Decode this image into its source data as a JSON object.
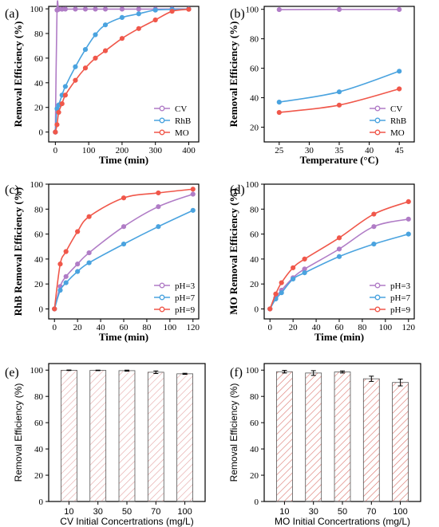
{
  "colors": {
    "cv": "#b07cc6",
    "rhb": "#4aa3df",
    "mo": "#f0574a",
    "bar_edge": "#555555",
    "hatch_e": "#e4a5a5",
    "hatch_f": "#d9726a"
  },
  "chart_data": [
    {
      "panel": "(a)",
      "type": "line",
      "xlabel": "Time (min)",
      "ylabel": "Removal Efficiency (%)",
      "xlim": [
        -20,
        430
      ],
      "ylim": [
        -8,
        102
      ],
      "xticks": [
        0,
        100,
        200,
        300,
        400
      ],
      "yticks": [
        0,
        20,
        40,
        60,
        80,
        100
      ],
      "legend": "bottom-right",
      "series": [
        {
          "name": "CV",
          "color_key": "cv",
          "x": [
            0,
            5,
            10,
            20,
            30,
            60,
            90,
            120,
            150,
            200,
            250,
            300,
            350,
            400
          ],
          "y": [
            0,
            99,
            99.6,
            99.7,
            99.8,
            99.8,
            99.8,
            99.8,
            99.8,
            99.8,
            99.8,
            99.8,
            99.9,
            99.9
          ]
        },
        {
          "name": "RhB",
          "color_key": "rhb",
          "x": [
            0,
            5,
            10,
            20,
            30,
            60,
            90,
            120,
            150,
            200,
            250,
            300,
            350,
            400
          ],
          "y": [
            0,
            19,
            22,
            30,
            37,
            53,
            67,
            79,
            87,
            93,
            96,
            99,
            99.5,
            99.8
          ]
        },
        {
          "name": "MO",
          "color_key": "mo",
          "x": [
            0,
            5,
            10,
            20,
            30,
            60,
            90,
            120,
            150,
            200,
            250,
            300,
            350,
            400
          ],
          "y": [
            0,
            6,
            16,
            23,
            30,
            42,
            52,
            60,
            66,
            76,
            84,
            91,
            98,
            99.6
          ]
        }
      ]
    },
    {
      "panel": "(b)",
      "type": "line",
      "xlabel": "Temperature (°C)",
      "ylabel": "Removal Efficiency (%)",
      "xlim": [
        22.5,
        47.5
      ],
      "ylim": [
        10,
        102
      ],
      "xticks": [
        25,
        30,
        35,
        40,
        45
      ],
      "yticks": [
        20,
        40,
        60,
        80,
        100
      ],
      "legend": "bottom-right",
      "series": [
        {
          "name": "CV",
          "color_key": "cv",
          "x": [
            25,
            35,
            45
          ],
          "y": [
            99.8,
            99.9,
            99.9
          ]
        },
        {
          "name": "RhB",
          "color_key": "rhb",
          "x": [
            25,
            35,
            45
          ],
          "y": [
            37,
            44,
            58
          ]
        },
        {
          "name": "MO",
          "color_key": "mo",
          "x": [
            25,
            35,
            45
          ],
          "y": [
            30,
            35,
            46
          ]
        }
      ]
    },
    {
      "panel": "(c)",
      "type": "line",
      "xlabel": "Time (min)",
      "ylabel": "RhB Removal Efficiency (%)",
      "xlim": [
        -5,
        125
      ],
      "ylim": [
        -8,
        100
      ],
      "xticks": [
        0,
        20,
        40,
        60,
        80,
        100,
        120
      ],
      "yticks": [
        0,
        20,
        40,
        60,
        80,
        100
      ],
      "legend": "bottom-right",
      "series": [
        {
          "name": "pH=3",
          "color_key": "cv",
          "x": [
            0,
            5,
            10,
            20,
            30,
            60,
            90,
            120
          ],
          "y": [
            0,
            18,
            26,
            36,
            45,
            66,
            82,
            92
          ]
        },
        {
          "name": "pH=7",
          "color_key": "rhb",
          "x": [
            0,
            5,
            10,
            20,
            30,
            60,
            90,
            120
          ],
          "y": [
            0,
            15,
            21,
            30,
            37,
            52,
            66,
            79
          ]
        },
        {
          "name": "pH=9",
          "color_key": "mo",
          "x": [
            0,
            5,
            10,
            20,
            30,
            60,
            90,
            120
          ],
          "y": [
            0,
            36,
            46,
            62,
            74,
            89,
            93,
            96
          ]
        }
      ]
    },
    {
      "panel": "(d)",
      "type": "line",
      "xlabel": "Time (min)",
      "ylabel": "MO Removal Efficiency (%)",
      "xlim": [
        -5,
        125
      ],
      "ylim": [
        -8,
        100
      ],
      "xticks": [
        0,
        20,
        40,
        60,
        80,
        100,
        120
      ],
      "yticks": [
        0,
        20,
        40,
        60,
        80,
        100
      ],
      "legend": "bottom-right",
      "series": [
        {
          "name": "pH=3",
          "color_key": "cv",
          "x": [
            0,
            5,
            10,
            20,
            30,
            60,
            90,
            120
          ],
          "y": [
            0,
            9,
            15,
            25,
            32,
            48,
            66,
            72
          ]
        },
        {
          "name": "pH=7",
          "color_key": "rhb",
          "x": [
            0,
            5,
            10,
            20,
            30,
            60,
            90,
            120
          ],
          "y": [
            0,
            8,
            13,
            24,
            29,
            42,
            52,
            60
          ]
        },
        {
          "name": "pH=9",
          "color_key": "mo",
          "x": [
            0,
            5,
            10,
            20,
            30,
            60,
            90,
            120
          ],
          "y": [
            0,
            12,
            21,
            33,
            40,
            57,
            76,
            86
          ]
        }
      ]
    },
    {
      "panel": "(e)",
      "type": "bar",
      "xlabel": "CV Initial Concertrations (mg/L)",
      "ylabel": "Removal Efficiency (%)",
      "ylim": [
        0,
        105
      ],
      "yticks": [
        0,
        20,
        40,
        60,
        80,
        100
      ],
      "categories": [
        "10",
        "30",
        "50",
        "70",
        "100"
      ],
      "values": [
        99.9,
        99.8,
        99.6,
        98.4,
        97.2
      ],
      "errors": [
        0.2,
        0.2,
        0.4,
        1.0,
        0.4
      ],
      "hatch_key": "hatch_e"
    },
    {
      "panel": "(f)",
      "type": "bar",
      "xlabel": "MO Initial Concertrations (mg/L)",
      "ylabel": "Removal Efficiency (%)",
      "ylim": [
        0,
        105
      ],
      "yticks": [
        0,
        20,
        40,
        60,
        80,
        100
      ],
      "categories": [
        "10",
        "30",
        "50",
        "70",
        "100"
      ],
      "values": [
        98.8,
        97.8,
        98.6,
        93.4,
        90.6
      ],
      "errors": [
        1.0,
        1.8,
        0.8,
        2.0,
        2.6
      ],
      "hatch_key": "hatch_f"
    }
  ]
}
